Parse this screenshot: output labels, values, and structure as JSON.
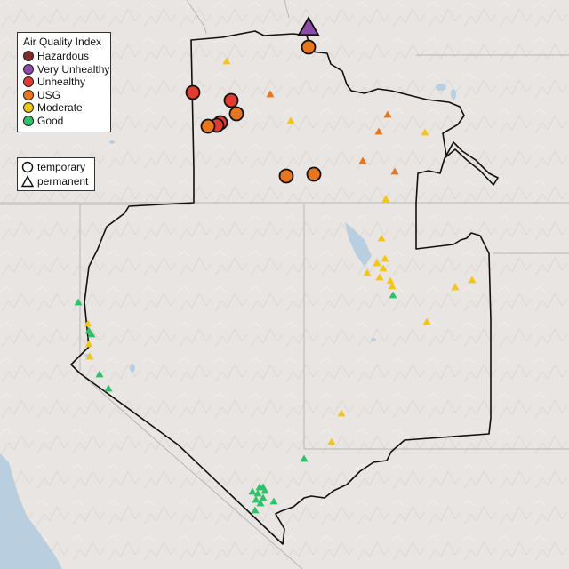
{
  "legend": {
    "title": "Air Quality Index",
    "categories": [
      {
        "label": "Hazardous",
        "color": "#7e2b2b"
      },
      {
        "label": "Very Unhealthy",
        "color": "#8c4ba8"
      },
      {
        "label": "Unhealthy",
        "color": "#e03c31"
      },
      {
        "label": "USG",
        "color": "#e8761e"
      },
      {
        "label": "Moderate",
        "color": "#f3c613"
      },
      {
        "label": "Good",
        "color": "#2ec16a"
      }
    ],
    "shapes": [
      {
        "label": "temporary",
        "shape": "circle"
      },
      {
        "label": "permanent",
        "shape": "triangle"
      }
    ]
  },
  "monitors": [
    {
      "category": "Very Unhealthy",
      "type": "permanent",
      "size": "large"
    },
    {
      "category": "USG",
      "type": "temporary",
      "size": "large"
    },
    {
      "category": "Moderate",
      "type": "permanent",
      "size": "small"
    },
    {
      "category": "Unhealthy",
      "type": "temporary",
      "size": "large"
    },
    {
      "category": "USG",
      "type": "permanent",
      "size": "small"
    },
    {
      "category": "Unhealthy",
      "type": "temporary",
      "size": "large"
    },
    {
      "category": "USG",
      "type": "temporary",
      "size": "large"
    },
    {
      "category": "Unhealthy",
      "type": "temporary",
      "size": "large"
    },
    {
      "category": "Unhealthy",
      "type": "temporary",
      "size": "large"
    },
    {
      "category": "USG",
      "type": "temporary",
      "size": "large"
    },
    {
      "category": "Moderate",
      "type": "permanent",
      "size": "small"
    },
    {
      "category": "USG",
      "type": "permanent",
      "size": "small"
    },
    {
      "category": "USG",
      "type": "permanent",
      "size": "small"
    },
    {
      "category": "Moderate",
      "type": "permanent",
      "size": "small"
    },
    {
      "category": "USG",
      "type": "permanent",
      "size": "small"
    },
    {
      "category": "USG",
      "type": "temporary",
      "size": "large"
    },
    {
      "category": "USG",
      "type": "temporary",
      "size": "large"
    },
    {
      "category": "USG",
      "type": "permanent",
      "size": "small"
    },
    {
      "category": "Moderate",
      "type": "permanent",
      "size": "small"
    },
    {
      "category": "Moderate",
      "type": "permanent",
      "size": "small"
    },
    {
      "category": "Moderate",
      "type": "permanent",
      "size": "small"
    },
    {
      "category": "Moderate",
      "type": "permanent",
      "size": "small"
    },
    {
      "category": "Moderate",
      "type": "permanent",
      "size": "small"
    },
    {
      "category": "Moderate",
      "type": "permanent",
      "size": "small"
    },
    {
      "category": "Moderate",
      "type": "permanent",
      "size": "small"
    },
    {
      "category": "Moderate",
      "type": "permanent",
      "size": "small"
    },
    {
      "category": "Moderate",
      "type": "permanent",
      "size": "small"
    },
    {
      "category": "Moderate",
      "type": "permanent",
      "size": "small"
    },
    {
      "category": "Moderate",
      "type": "permanent",
      "size": "small"
    },
    {
      "category": "Moderate",
      "type": "permanent",
      "size": "small"
    },
    {
      "category": "Good",
      "type": "permanent",
      "size": "small"
    },
    {
      "category": "Moderate",
      "type": "permanent",
      "size": "small"
    },
    {
      "category": "Moderate",
      "type": "permanent",
      "size": "small"
    },
    {
      "category": "Moderate",
      "type": "permanent",
      "size": "small"
    },
    {
      "category": "Good",
      "type": "permanent",
      "size": "small"
    },
    {
      "category": "Good",
      "type": "permanent",
      "size": "small"
    },
    {
      "category": "Good",
      "type": "permanent",
      "size": "small"
    },
    {
      "category": "Good",
      "type": "permanent",
      "size": "small"
    },
    {
      "category": "Good",
      "type": "permanent",
      "size": "small"
    },
    {
      "category": "Moderate",
      "type": "permanent",
      "size": "small"
    },
    {
      "category": "Moderate",
      "type": "permanent",
      "size": "small"
    },
    {
      "category": "Good",
      "type": "permanent",
      "size": "small"
    },
    {
      "category": "Good",
      "type": "permanent",
      "size": "small"
    },
    {
      "category": "Good",
      "type": "permanent",
      "size": "small"
    },
    {
      "category": "Good",
      "type": "permanent",
      "size": "small"
    },
    {
      "category": "Good",
      "type": "permanent",
      "size": "small"
    },
    {
      "category": "Good",
      "type": "permanent",
      "size": "small"
    },
    {
      "category": "Good",
      "type": "permanent",
      "size": "small"
    },
    {
      "category": "Good",
      "type": "permanent",
      "size": "small"
    },
    {
      "category": "Good",
      "type": "permanent",
      "size": "small"
    },
    {
      "category": "Good",
      "type": "permanent",
      "size": "small"
    },
    {
      "category": "Good",
      "type": "permanent",
      "size": "small"
    },
    {
      "category": "Good",
      "type": "permanent",
      "size": "small"
    },
    {
      "category": "Good",
      "type": "permanent",
      "size": "small"
    }
  ]
}
